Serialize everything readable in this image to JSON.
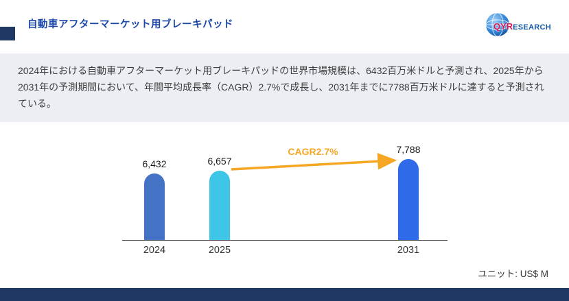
{
  "colors": {
    "brand_navy": "#203864",
    "title_blue": "#1b47a8",
    "accent_orange": "#F5A623",
    "summary_bg": "#ebeef3"
  },
  "header": {
    "title": "自動車アフターマーケット用ブレーキパッド",
    "logo_qyr": "QYR",
    "logo_rest": "ESEARCH"
  },
  "summary": {
    "text": "2024年における自動車アフターマーケット用ブレーキパッドの世界市場規模は、6432百万米ドルと予測され、2025年から2031年の予測期間において、年間平均成長率（CAGR）2.7%で成長し、2031年までに7788百万米ドルに達すると予測されている。"
  },
  "chart_data": {
    "type": "bar",
    "categories": [
      "2024",
      "2025",
      "2031"
    ],
    "values": [
      6432,
      6657,
      7788
    ],
    "value_labels": [
      "6,432",
      "6,657",
      "7,788"
    ],
    "bar_colors": [
      "#4472C4",
      "#3EC6E8",
      "#2F6BE8"
    ],
    "annotation": "CAGR2.7%",
    "unit_label": "ユニット: US$ M",
    "xlabel": "",
    "ylabel": "",
    "y_axis_visible": false,
    "grid": false,
    "legend": "none"
  }
}
